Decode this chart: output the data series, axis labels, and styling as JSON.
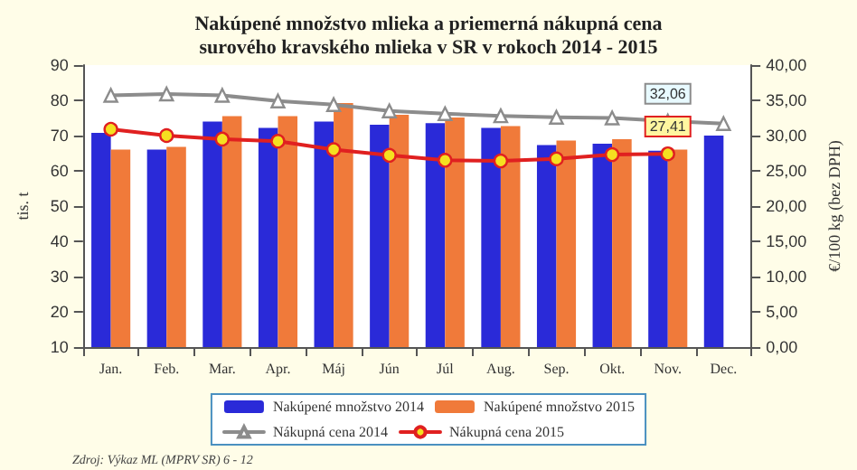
{
  "chart_data": {
    "type": "bar",
    "title": "Nakúpené množstvo mlieka a priemerná nákupná cena\nsurového kravského mlieka v SR v rokoch 2014 - 2015",
    "ylabel": "tis. t",
    "y2label": "€/100 kg (bez DPH)",
    "categories": [
      "Jan.",
      "Feb.",
      "Mar.",
      "Apr.",
      "Máj",
      "Jún",
      "Júl",
      "Aug.",
      "Sep.",
      "Okt.",
      "Nov.",
      "Dec."
    ],
    "series": [
      {
        "name": "Nakúpené množstvo 2014",
        "color": "#2a2ad8",
        "values": [
          70.8,
          66,
          74,
          72.2,
          74,
          73.1,
          73.5,
          72.2,
          67.3,
          67.7,
          65.7,
          70
        ]
      },
      {
        "name": "Nakúpené množstvo 2015",
        "color": "#f07a3a",
        "values": [
          66,
          66.8,
          75.5,
          75.5,
          79.2,
          75.9,
          75.1,
          72.7,
          68.6,
          69,
          66,
          null
        ]
      },
      {
        "name": "Nákupná cena 2014",
        "type": "line",
        "axis": "y2",
        "color": "#8c8c8c",
        "marker": "triangle",
        "values": [
          35.7,
          35.9,
          35.7,
          34.9,
          34.4,
          33.5,
          33.1,
          32.8,
          32.6,
          32.5,
          32.06,
          31.7
        ],
        "value_labels": [
          null,
          null,
          null,
          null,
          null,
          null,
          null,
          null,
          null,
          null,
          "32,06",
          null
        ]
      },
      {
        "name": "Nákupná cena 2015",
        "type": "line",
        "axis": "y2",
        "color": "#e02020",
        "marker": "circle",
        "values": [
          30.9,
          30,
          29.5,
          29.2,
          28,
          27.2,
          26.5,
          26.4,
          26.7,
          27.3,
          27.41,
          null
        ],
        "value_labels": [
          null,
          null,
          null,
          null,
          null,
          null,
          null,
          null,
          null,
          null,
          "27,41",
          null
        ]
      }
    ],
    "ylim": [
      10,
      90
    ],
    "yticks": [
      10,
      20,
      30,
      40,
      50,
      60,
      70,
      80,
      90
    ],
    "y2lim": [
      0,
      40
    ],
    "y2ticks": [
      {
        "value": 0,
        "label": "0,00"
      },
      {
        "value": 5,
        "label": "5,00"
      },
      {
        "value": 10,
        "label": "10,00"
      },
      {
        "value": 15,
        "label": "15,00"
      },
      {
        "value": 20,
        "label": "20,00"
      },
      {
        "value": 25,
        "label": "25,00"
      },
      {
        "value": 30,
        "label": "30,00"
      },
      {
        "value": 35,
        "label": "35,00"
      },
      {
        "value": 40,
        "label": "40,00"
      }
    ],
    "grid": false,
    "legend": "bottom",
    "line_style": "solid",
    "annotations": [
      "Zdroj: Výkaz ML (MPRV SR) 6 - 12"
    ]
  }
}
